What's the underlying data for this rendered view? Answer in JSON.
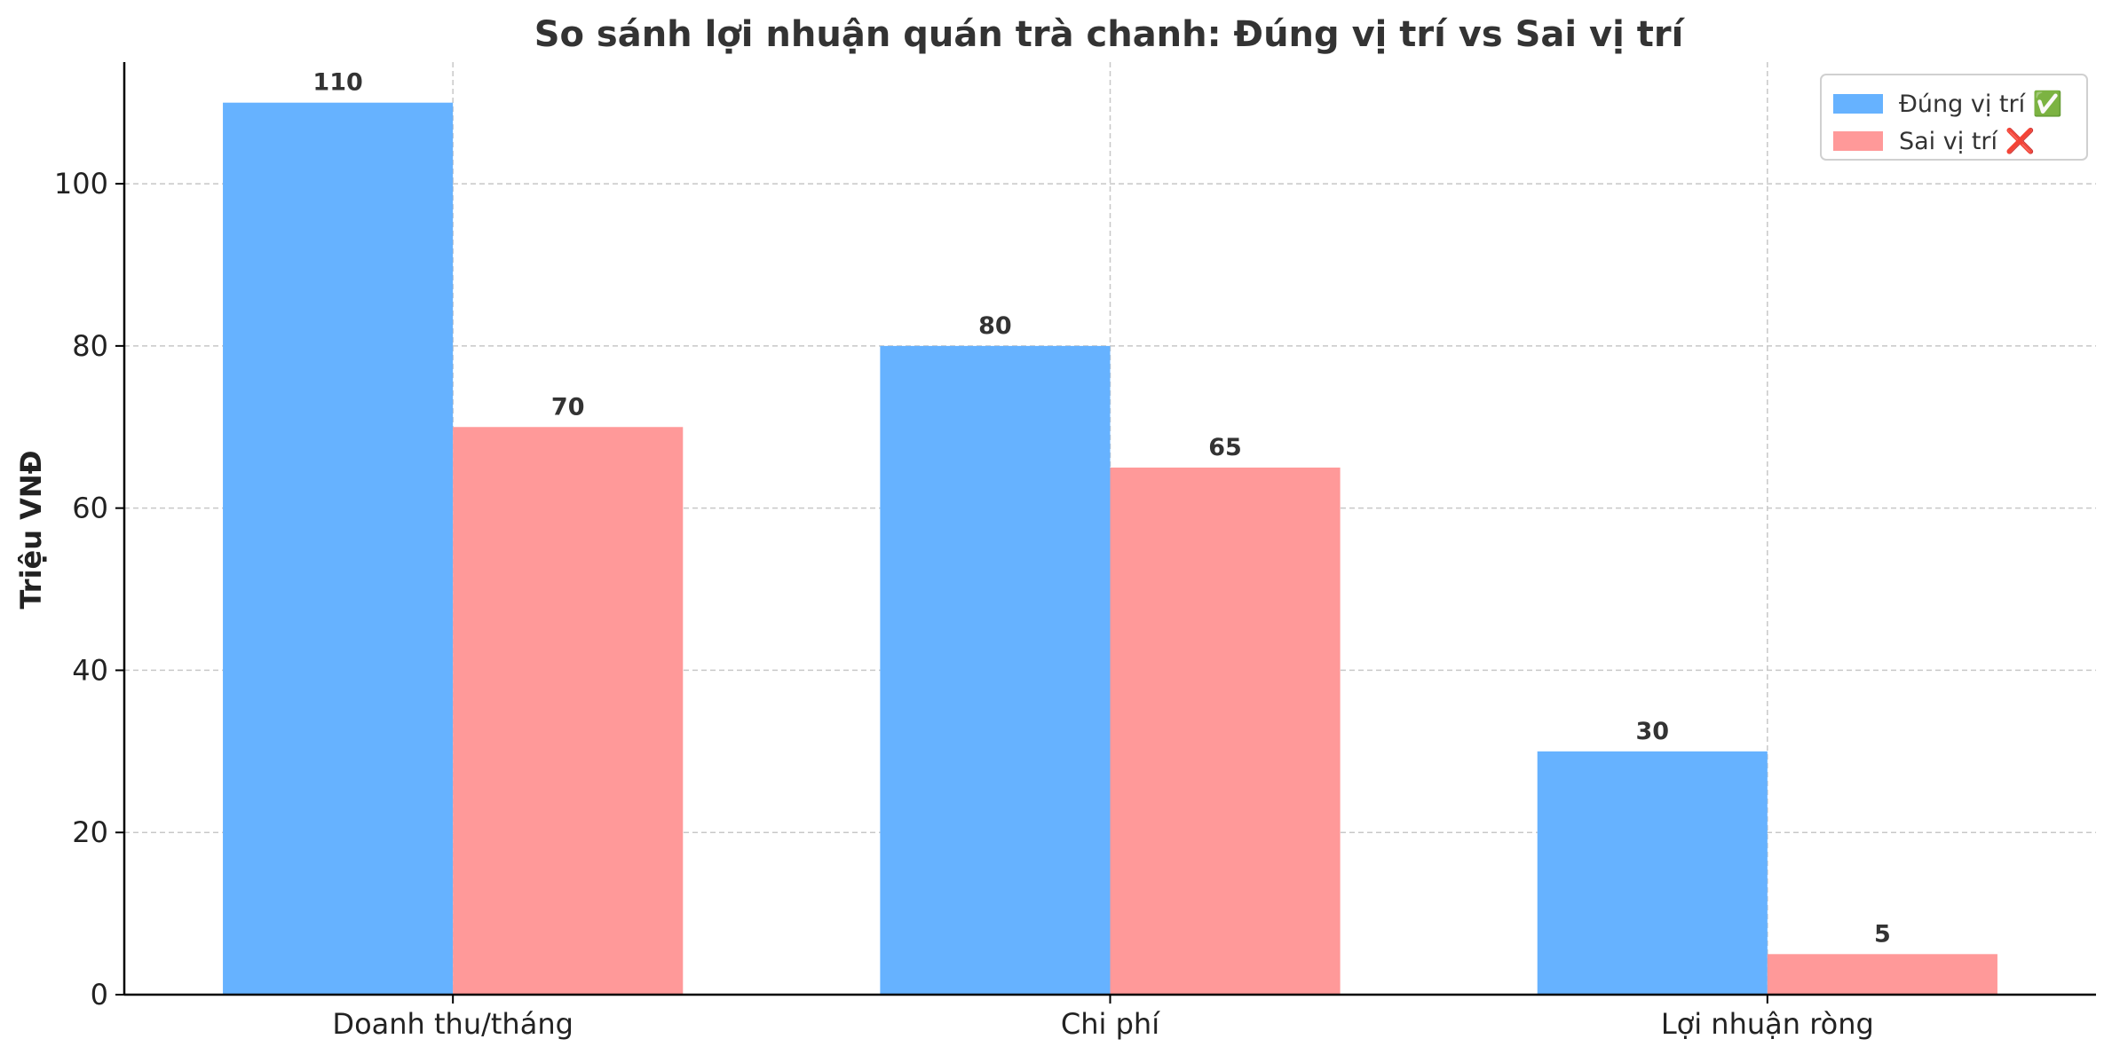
{
  "chart_data": {
    "type": "bar",
    "title": "So sánh lợi nhuận quán trà chanh: Đúng vị trí vs Sai vị trí",
    "xlabel": "",
    "ylabel": "Triệu VNĐ",
    "categories": [
      "Doanh thu/tháng",
      "Chi phí",
      "Lợi nhuận ròng"
    ],
    "series": [
      {
        "name": "Đúng vị trí ✅",
        "color": "#66b2ff",
        "values": [
          110,
          80,
          30
        ]
      },
      {
        "name": "Sai vị trí ❌",
        "color": "#ff9999",
        "values": [
          70,
          65,
          5
        ]
      }
    ],
    "ylim": [
      0,
      115
    ],
    "yticks": [
      0,
      20,
      40,
      60,
      80,
      100
    ],
    "grid": true,
    "legend_position": "top-right"
  }
}
